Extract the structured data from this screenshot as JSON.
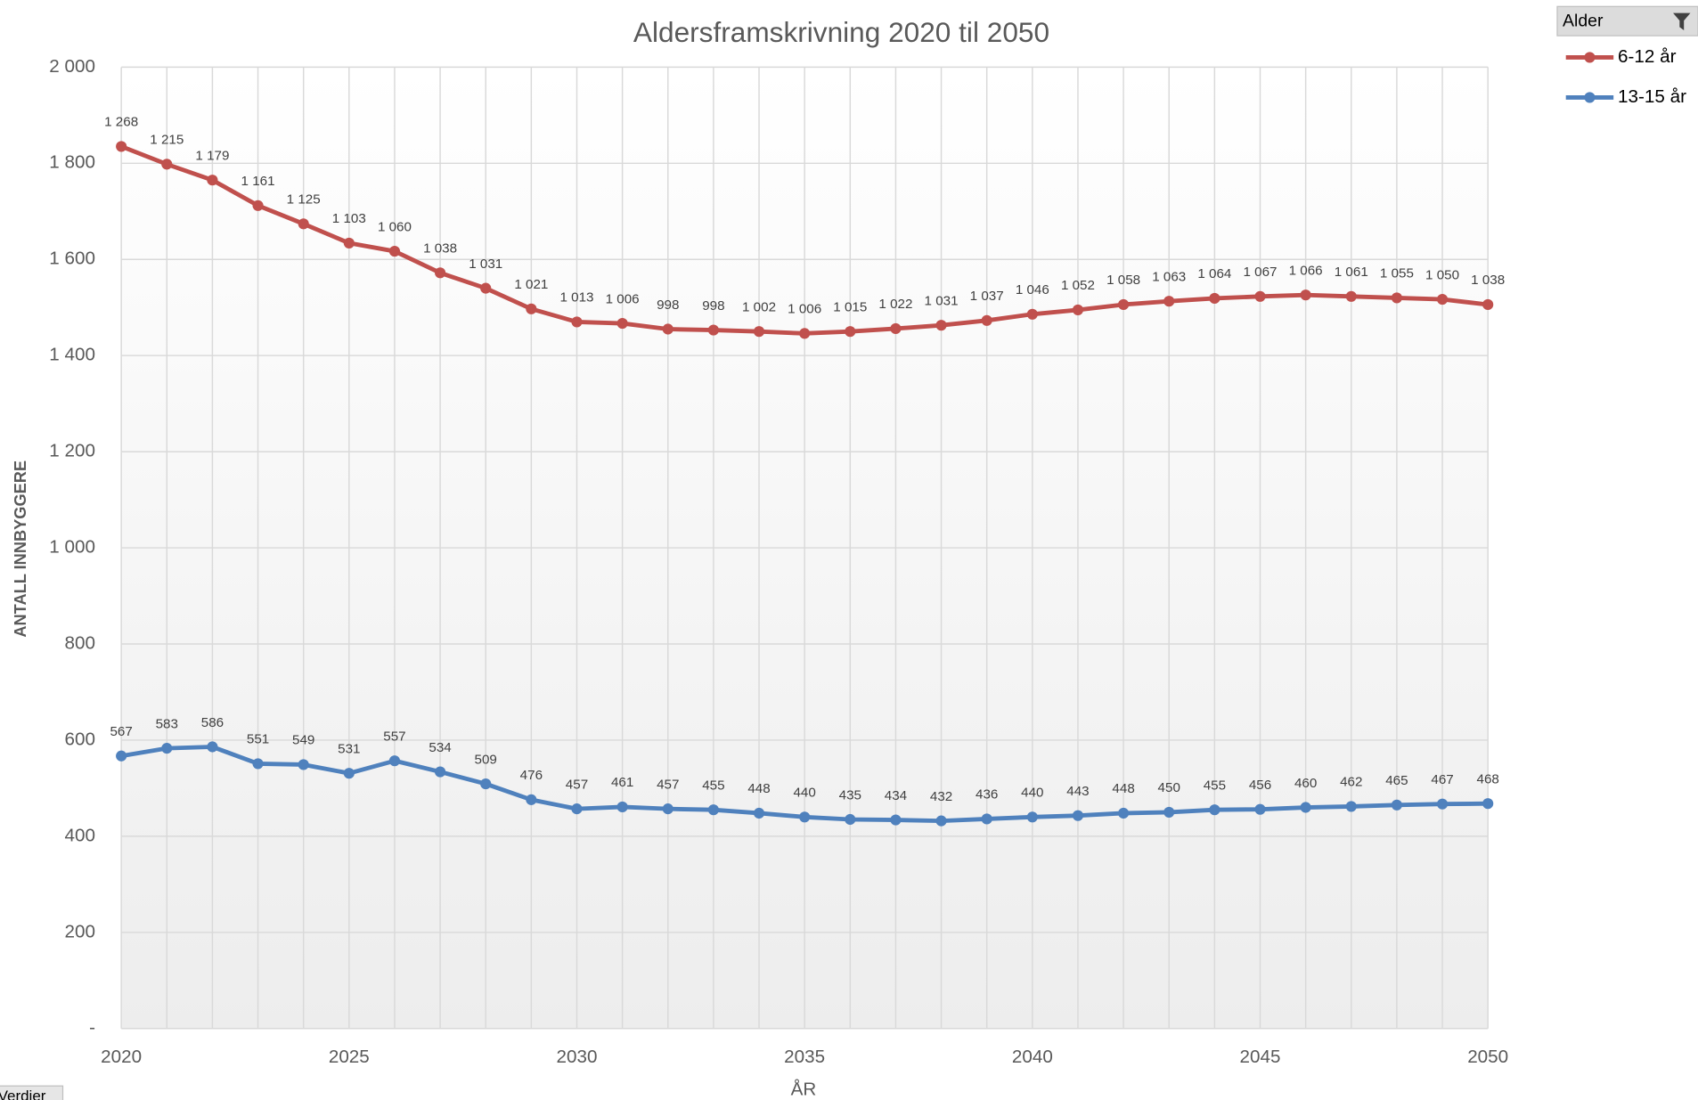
{
  "chart_data": {
    "type": "line",
    "stacked": true,
    "title": "Aldersframskrivning  2020 til 2050",
    "x_label": "ÅR",
    "y_label": "ANTALL INNBYGGERE",
    "legend_title": "Alder",
    "field_button": "Verdier",
    "x": [
      2020,
      2021,
      2022,
      2023,
      2024,
      2025,
      2026,
      2027,
      2028,
      2029,
      2030,
      2031,
      2032,
      2033,
      2034,
      2035,
      2036,
      2037,
      2038,
      2039,
      2040,
      2041,
      2042,
      2043,
      2044,
      2045,
      2046,
      2047,
      2048,
      2049,
      2050
    ],
    "xlim": [
      2020,
      2050
    ],
    "xticks": [
      2020,
      2025,
      2030,
      2035,
      2040,
      2045,
      2050
    ],
    "ylim": [
      0,
      2000
    ],
    "yticks": [
      {
        "value": 0,
        "label": "-"
      },
      200,
      400,
      600,
      800,
      {
        "value": 1000,
        "label": "1 000"
      },
      {
        "value": 1200,
        "label": "1 200"
      },
      {
        "value": 1400,
        "label": "1 400"
      },
      {
        "value": 1600,
        "label": "1 600"
      },
      {
        "value": 1800,
        "label": "1 800"
      },
      {
        "value": 2000,
        "label": "2 000"
      }
    ],
    "grid": true,
    "legend": "right",
    "series": [
      {
        "name": "13-15 år",
        "color": "#4f81bd",
        "values": [
          567,
          583,
          586,
          551,
          549,
          531,
          557,
          534,
          509,
          476,
          457,
          461,
          457,
          455,
          448,
          440,
          435,
          434,
          432,
          436,
          440,
          443,
          448,
          450,
          455,
          456,
          460,
          462,
          465,
          467,
          468
        ]
      },
      {
        "name": "6-12 år",
        "color": "#c0504d",
        "values": [
          1268,
          1215,
          1179,
          1161,
          1125,
          1103,
          1060,
          1038,
          1031,
          1021,
          1013,
          1006,
          998,
          998,
          1002,
          1006,
          1015,
          1022,
          1031,
          1037,
          1046,
          1052,
          1058,
          1063,
          1064,
          1067,
          1066,
          1061,
          1055,
          1050,
          1038
        ],
        "value_labels": [
          "1 268",
          "1 215",
          "1 179",
          "1 161",
          "1 125",
          "1 103",
          "1 060",
          "1 038",
          "1 031",
          "1 021",
          "1 013",
          "1 006",
          "998",
          "998",
          "1 002",
          "1 006",
          "1 015",
          "1 022",
          "1 031",
          "1 037",
          "1 046",
          "1 052",
          "1 058",
          "1 063",
          "1 064",
          "1 067",
          "1 066",
          "1 061",
          "1 055",
          "1 050",
          "1 038"
        ]
      }
    ]
  }
}
